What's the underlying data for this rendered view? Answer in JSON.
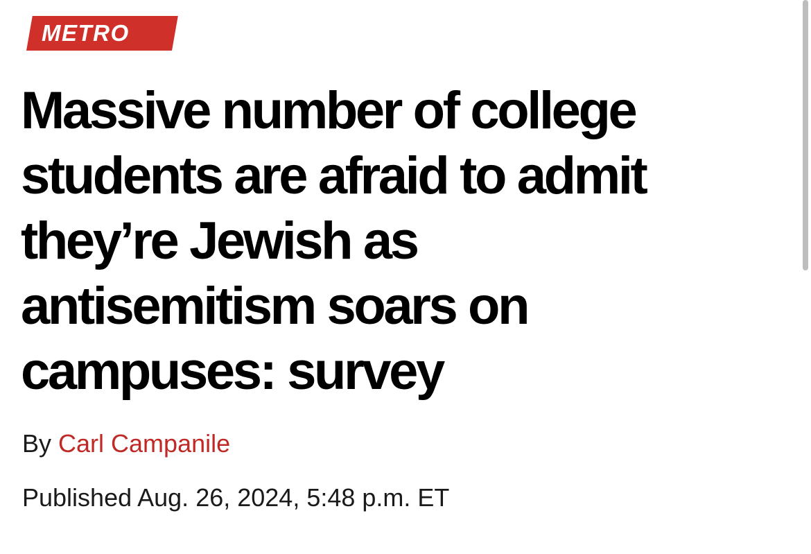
{
  "section": {
    "label": "METRO",
    "color": "#d0302a"
  },
  "article": {
    "headline_lines": [
      "Massive number of college",
      "students are afraid to admit",
      "they’re Jewish as",
      "antisemitism soars on",
      "campuses: survey"
    ],
    "byline_prefix": "By",
    "author": "Carl Campanile",
    "author_color": "#bf2a26",
    "published": "Published Aug. 26, 2024, 5:48 p.m. ET"
  }
}
